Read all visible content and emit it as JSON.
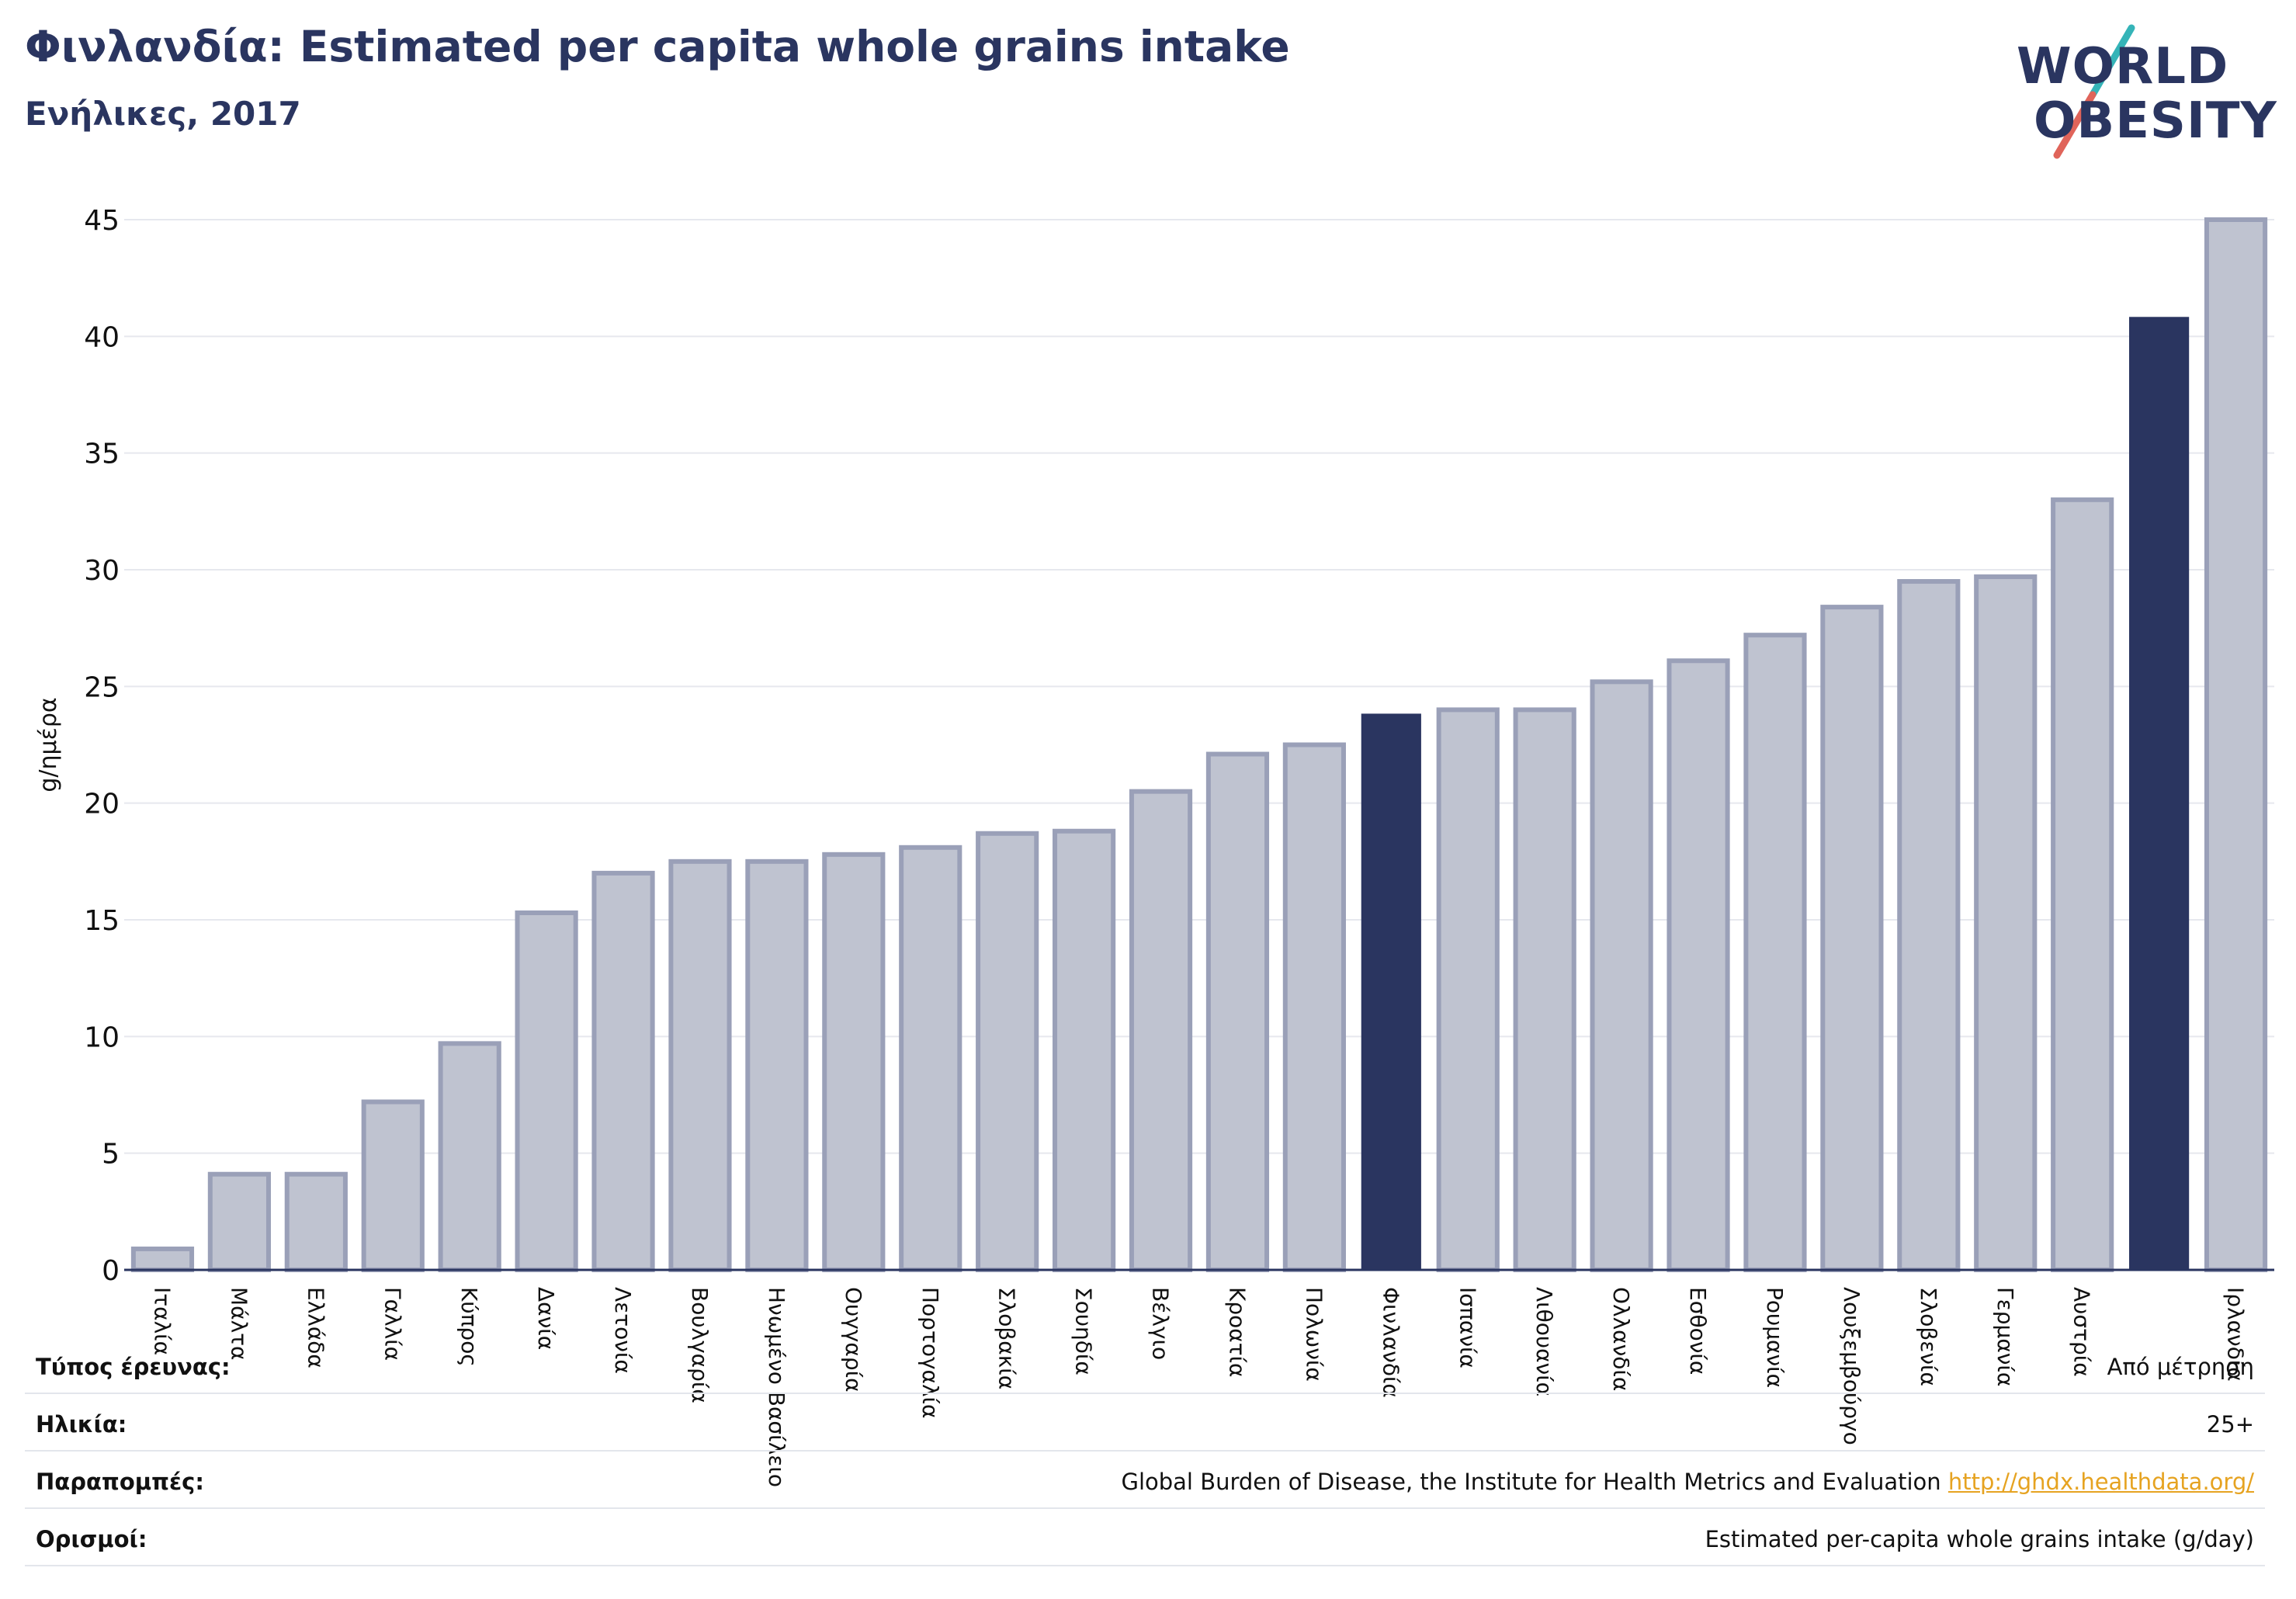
{
  "header": {
    "title": "Φινλανδία: Estimated per capita whole grains intake",
    "subtitle": "Ενήλικες, 2017"
  },
  "logo": {
    "line1": "WORLD",
    "line2": "OBESITY",
    "slash_colors": [
      "#35b4b8",
      "#e0645a"
    ]
  },
  "colors": {
    "highlight": "#2a3560",
    "bar": "#bfc3d0",
    "bar_edge": "#9aa0b8",
    "grid": "#e6e8ee",
    "axis": "#2a3560"
  },
  "chart_data": {
    "type": "bar",
    "ylabel": "g/ημέρα",
    "ylim": [
      0,
      45
    ],
    "yticks": [
      0,
      5,
      10,
      15,
      20,
      25,
      30,
      35,
      40,
      45
    ],
    "grid": true,
    "categories": [
      "Ιταλία",
      "Μάλτα",
      "Ελλάδα",
      "Γαλλία",
      "Κύπρος",
      "Δανία",
      "Λετονία",
      "Βουλγαρία",
      "Ηνωμένο Βασίλειο",
      "Ουγγαρία",
      "Πορτογαλία",
      "Σλοβακία",
      "Σουηδία",
      "Βέλγιο",
      "Κροατία",
      "Πολωνία",
      "Φινλανδία",
      "Ισπανία",
      "Λιθουανία",
      "Ολλανδία",
      "Εσθονία",
      "Ρουμανία",
      "Λουξεμβούργο",
      "Σλοβενία",
      "Γερμανία",
      "Αυστρία",
      "",
      "Ιρλανδία"
    ],
    "values": [
      0.9,
      4.1,
      4.1,
      7.2,
      9.7,
      15.3,
      17.0,
      17.5,
      17.5,
      17.8,
      18.1,
      18.7,
      18.8,
      20.5,
      22.1,
      22.5,
      23.8,
      24.0,
      24.0,
      25.2,
      26.1,
      27.2,
      28.4,
      29.5,
      29.7,
      33.0,
      40.8,
      45.0
    ],
    "highlight": [
      false,
      false,
      false,
      false,
      false,
      false,
      false,
      false,
      false,
      false,
      false,
      false,
      false,
      false,
      false,
      false,
      true,
      false,
      false,
      false,
      false,
      false,
      false,
      false,
      false,
      false,
      true,
      false
    ]
  },
  "footer": {
    "rows": [
      {
        "label": "Τύπος έρευνας:",
        "value": "Από μέτρηση"
      },
      {
        "label": "Ηλικία:",
        "value": "25+"
      },
      {
        "label": "Παραπομπές:",
        "value": "Global Burden of Disease, the Institute for Health Metrics and Evaluation",
        "link": "http://ghdx.healthdata.org/"
      },
      {
        "label": "Ορισμοί:",
        "value": "Estimated per-capita whole grains intake (g/day)"
      }
    ]
  }
}
